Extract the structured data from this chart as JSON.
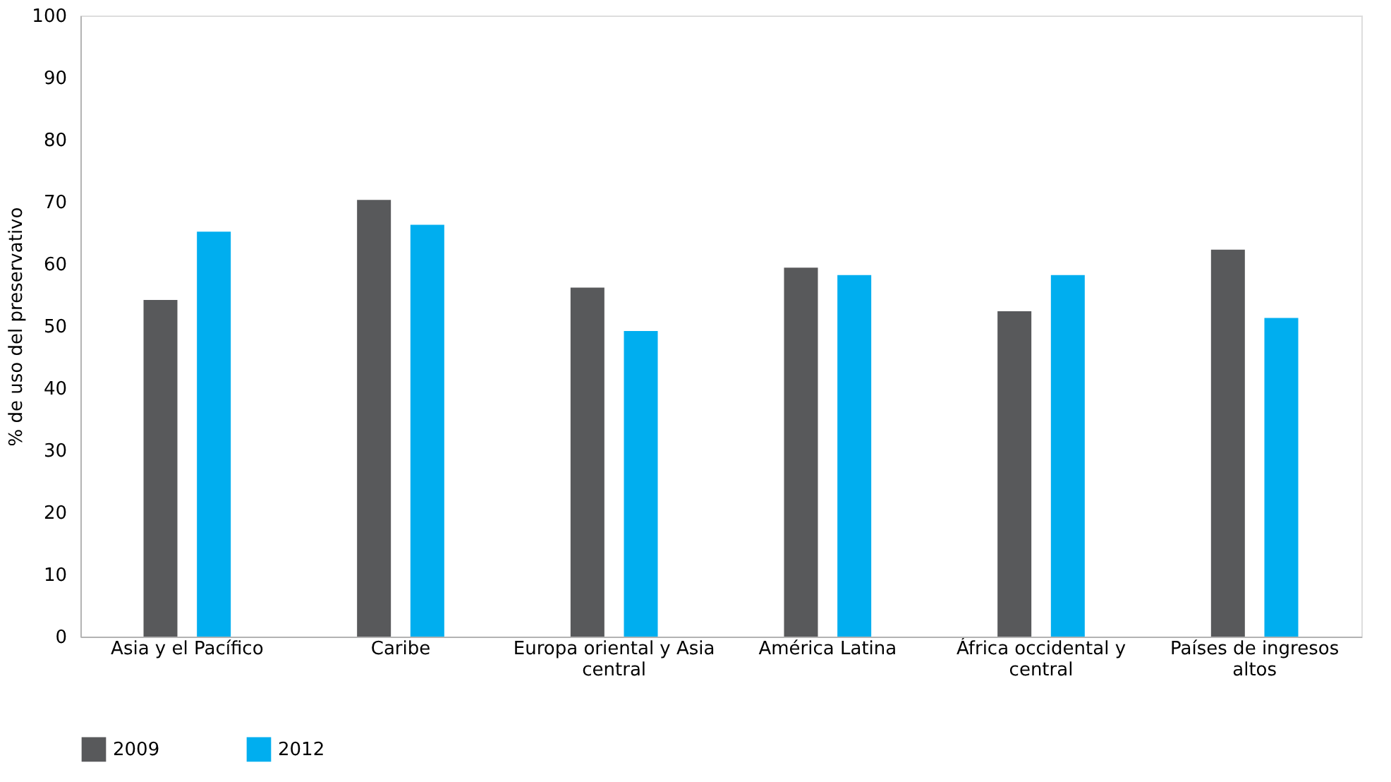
{
  "chart_data": {
    "type": "bar",
    "ylabel": "% de uso del preservativo",
    "categories": [
      "Asia y el Pacífico",
      "Caribe",
      "Europa oriental y Asia central",
      "América Latina",
      "África occidental y central",
      "Países de ingresos altos"
    ],
    "series": [
      {
        "name": "2009",
        "color": "#58595b",
        "values": [
          54.2,
          70.3,
          56.2,
          59.4,
          52.4,
          62.3
        ]
      },
      {
        "name": "2012",
        "color": "#00aeef",
        "values": [
          65.2,
          66.3,
          49.2,
          58.2,
          58.2,
          51.3
        ]
      }
    ],
    "ylim": [
      0,
      100
    ],
    "yticks": [
      0,
      10,
      20,
      30,
      40,
      50,
      60,
      70,
      80,
      90,
      100
    ],
    "grid": false,
    "legend": "bottom left"
  }
}
